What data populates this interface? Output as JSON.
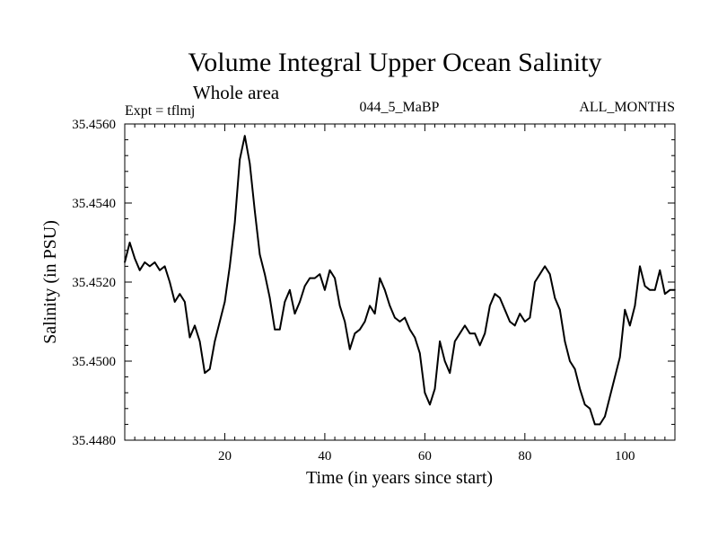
{
  "header": {
    "expt": "Expt = tflmj",
    "run_id": "044_5_MaBP",
    "months": "ALL_MONTHS",
    "area": "Whole area"
  },
  "chart_data": {
    "type": "line",
    "title": "Volume Integral Upper Ocean Salinity",
    "subtitle": "Whole area",
    "xlabel": "Time (in years since start)",
    "ylabel": "Salinity (in PSU)",
    "xlim": [
      0,
      110
    ],
    "ylim": [
      35.448,
      35.456
    ],
    "xticks": [
      20,
      40,
      60,
      80,
      100
    ],
    "xtick_labels": [
      "20",
      "40",
      "60",
      "80",
      "100"
    ],
    "yticks": [
      35.448,
      35.45,
      35.452,
      35.454,
      35.456
    ],
    "ytick_labels": [
      "35.4480",
      "35.4500",
      "35.4520",
      "35.4540",
      "35.4560"
    ],
    "grid": false,
    "series": [
      {
        "name": "salinity",
        "color": "#000000",
        "x": [
          0,
          1,
          2,
          3,
          4,
          5,
          6,
          7,
          8,
          9,
          10,
          11,
          12,
          13,
          14,
          15,
          16,
          17,
          18,
          19,
          20,
          21,
          22,
          23,
          24,
          25,
          26,
          27,
          28,
          29,
          30,
          31,
          32,
          33,
          34,
          35,
          36,
          37,
          38,
          39,
          40,
          41,
          42,
          43,
          44,
          45,
          46,
          47,
          48,
          49,
          50,
          51,
          52,
          53,
          54,
          55,
          56,
          57,
          58,
          59,
          60,
          61,
          62,
          63,
          64,
          65,
          66,
          67,
          68,
          69,
          70,
          71,
          72,
          73,
          74,
          75,
          76,
          77,
          78,
          79,
          80,
          81,
          82,
          83,
          84,
          85,
          86,
          87,
          88,
          89,
          90,
          91,
          92,
          93,
          94,
          95,
          96,
          97,
          98,
          99,
          100,
          101,
          102,
          103,
          104,
          105,
          106,
          107,
          108,
          109,
          110
        ],
        "values": [
          35.4525,
          35.453,
          35.4526,
          35.4523,
          35.4525,
          35.4524,
          35.4525,
          35.4523,
          35.4524,
          35.452,
          35.4515,
          35.4517,
          35.4515,
          35.4506,
          35.4509,
          35.4505,
          35.4497,
          35.4498,
          35.4505,
          35.451,
          35.4515,
          35.4524,
          35.4535,
          35.4551,
          35.4557,
          35.455,
          35.4538,
          35.4527,
          35.4522,
          35.4516,
          35.4508,
          35.4508,
          35.4515,
          35.4518,
          35.4512,
          35.4515,
          35.4519,
          35.4521,
          35.4521,
          35.4522,
          35.4518,
          35.4523,
          35.4521,
          35.4514,
          35.451,
          35.4503,
          35.4507,
          35.4508,
          35.451,
          35.4514,
          35.4512,
          35.4521,
          35.4518,
          35.4514,
          35.4511,
          35.451,
          35.4511,
          35.4508,
          35.4506,
          35.4502,
          35.4492,
          35.4489,
          35.4493,
          35.4505,
          35.45,
          35.4497,
          35.4505,
          35.4507,
          35.4509,
          35.4507,
          35.4507,
          35.4504,
          35.4507,
          35.4514,
          35.4517,
          35.4516,
          35.4513,
          35.451,
          35.4509,
          35.4512,
          35.451,
          35.4511,
          35.452,
          35.4522,
          35.4524,
          35.4522,
          35.4516,
          35.4513,
          35.4505,
          35.45,
          35.4498,
          35.4493,
          35.4489,
          35.4488,
          35.4484,
          35.4484,
          35.4486,
          35.4491,
          35.4496,
          35.4501,
          35.4513,
          35.4509,
          35.4514,
          35.4524,
          35.4519,
          35.4518,
          35.4518,
          35.4523,
          35.4517,
          35.4518,
          35.4518
        ]
      }
    ]
  }
}
